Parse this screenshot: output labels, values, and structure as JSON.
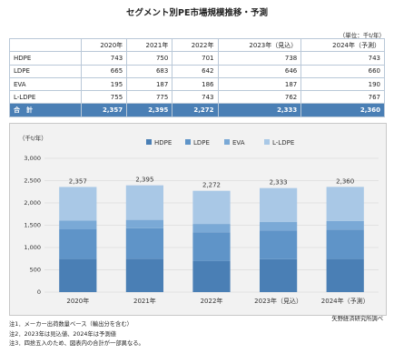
{
  "title": "セグメント別PE市場規模推移・予測",
  "unit_label": "（単位：千t/年）",
  "table": {
    "columns": [
      "2020年",
      "2021年",
      "2022年",
      "2023年（見込）",
      "2024年（予測）"
    ],
    "rows": [
      {
        "name": "HDPE",
        "values": [
          "743",
          "750",
          "701",
          "738",
          "743"
        ]
      },
      {
        "name": "LDPE",
        "values": [
          "665",
          "683",
          "642",
          "646",
          "660"
        ]
      },
      {
        "name": "EVA",
        "values": [
          "195",
          "187",
          "186",
          "187",
          "190"
        ]
      },
      {
        "name": "L-LDPE",
        "values": [
          "755",
          "775",
          "743",
          "762",
          "767"
        ]
      }
    ],
    "total": {
      "name": "合　計",
      "values": [
        "2,357",
        "2,395",
        "2,272",
        "2,333",
        "2,360"
      ]
    }
  },
  "chart_data": {
    "type": "bar",
    "stacked": true,
    "ylabel": "（千t/年）",
    "ylim": [
      0,
      3000
    ],
    "yticks": [
      "0",
      "500",
      "1,000",
      "1,500",
      "2,000",
      "2,500",
      "3,000"
    ],
    "categories": [
      "2020年",
      "2021年",
      "2022年",
      "2023年（見込）",
      "2024年（予測）"
    ],
    "series": [
      {
        "name": "HDPE",
        "values": [
          743,
          750,
          701,
          738,
          743
        ],
        "color": "#4a7fb5"
      },
      {
        "name": "LDPE",
        "values": [
          665,
          683,
          642,
          646,
          660
        ],
        "color": "#5f94c8"
      },
      {
        "name": "EVA",
        "values": [
          195,
          187,
          186,
          187,
          190
        ],
        "color": "#7aa9d6"
      },
      {
        "name": "L-LDPE",
        "values": [
          755,
          775,
          743,
          762,
          767
        ],
        "color": "#a9c8e6"
      }
    ],
    "totals": [
      "2,357",
      "2,395",
      "2,272",
      "2,333",
      "2,360"
    ],
    "legend": "top-center",
    "grid": true
  },
  "source": "矢野経済研究所調べ",
  "notes": [
    "注1．メーカー出荷数量ベース（輸出分を含む）",
    "注2．2023年は見込値、2024年は予測値",
    "注3．四捨五入のため、図表内の合計が一部異なる。"
  ]
}
